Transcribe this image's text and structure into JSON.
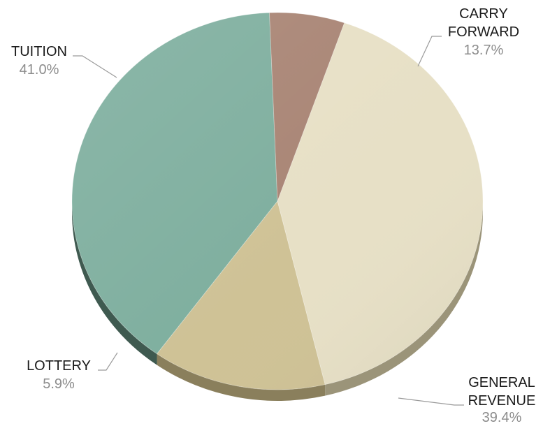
{
  "chart_data": {
    "type": "pie",
    "series": [
      {
        "name": "",
        "slices": [
          {
            "label": "TUITION",
            "line2": "",
            "value": 41.0,
            "value_label": "41.0%",
            "color": "#E7E0C6",
            "side_color": "#9b9479"
          },
          {
            "label": "CARRY",
            "line2": "FORWARD",
            "value": 13.7,
            "value_label": "13.7%",
            "color": "#CFC296",
            "side_color": "#8a7f5c"
          },
          {
            "label": "GENERAL",
            "line2": "REVENUE",
            "value": 39.4,
            "value_label": "39.4%",
            "color": "#7FAF9F",
            "side_color": "#3f5a50"
          },
          {
            "label": "LOTTERY",
            "line2": "",
            "value": 5.9,
            "value_label": "5.9%",
            "color": "#A98575",
            "side_color": "#5a4036"
          }
        ]
      }
    ],
    "legend": "none",
    "data_labels": "outside with leader lines"
  }
}
